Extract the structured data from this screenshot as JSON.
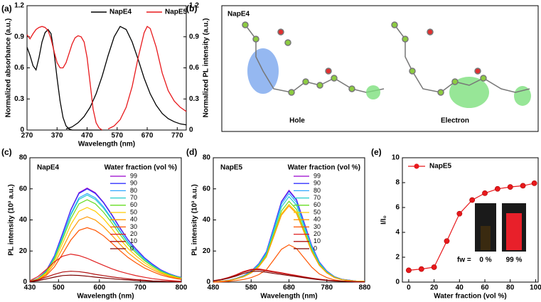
{
  "chart_data": [
    {
      "type": "line",
      "panel_label": "(a)",
      "x_label": "Wavelength (nm)",
      "y_label": "Normalized absorbance (a.u.)",
      "y2_label": "Normalized PL intensity (a.u.)",
      "xlim": [
        270,
        800
      ],
      "xticks": [
        270,
        370,
        470,
        570,
        670,
        770
      ],
      "ylim": [
        0,
        1.2
      ],
      "yticks": [
        0,
        0.3,
        0.6,
        0.9,
        1.2
      ],
      "y2lim": [
        0,
        1.2
      ],
      "y2ticks": [
        0,
        0.3,
        0.6,
        0.9,
        1.2
      ],
      "legend": "top",
      "series": [
        {
          "name": "NapE4",
          "color": "#000000",
          "curves": [
            {
              "x": [
                270,
                280,
                290,
                300,
                310,
                320,
                330,
                340,
                350,
                360,
                370,
                380,
                390,
                400,
                410,
                420,
                440,
                480,
                520
              ],
              "values": [
                0.8,
                0.72,
                0.62,
                0.58,
                0.7,
                0.85,
                0.94,
                0.97,
                0.93,
                0.75,
                0.5,
                0.28,
                0.12,
                0.04,
                0.01,
                0,
                0,
                0,
                0
              ]
            },
            {
              "x": [
                400,
                420,
                440,
                460,
                480,
                500,
                520,
                540,
                560,
                580,
                600,
                620,
                640,
                660,
                680,
                700,
                720,
                740,
                760,
                780,
                800
              ],
              "values": [
                0.01,
                0.03,
                0.07,
                0.13,
                0.22,
                0.35,
                0.52,
                0.72,
                0.9,
                1.0,
                0.97,
                0.85,
                0.68,
                0.5,
                0.35,
                0.24,
                0.16,
                0.11,
                0.08,
                0.06,
                0.05
              ],
              "axis": "y2"
            }
          ]
        },
        {
          "name": "NapE5",
          "color": "#e8191c",
          "curves": [
            {
              "x": [
                270,
                280,
                290,
                300,
                310,
                320,
                330,
                340,
                350,
                360,
                370,
                380,
                390,
                400,
                410,
                420,
                430,
                440,
                450,
                460,
                470,
                480,
                490,
                500,
                510,
                520
              ],
              "values": [
                0.92,
                0.88,
                0.93,
                0.97,
                0.99,
                1.0,
                0.99,
                0.96,
                0.88,
                0.76,
                0.65,
                0.6,
                0.6,
                0.65,
                0.74,
                0.83,
                0.89,
                0.91,
                0.9,
                0.85,
                0.7,
                0.45,
                0.2,
                0.07,
                0.02,
                0
              ]
            },
            {
              "x": [
                540,
                560,
                580,
                600,
                620,
                640,
                660,
                670,
                680,
                700,
                720,
                740,
                760,
                780,
                800
              ],
              "values": [
                0.01,
                0.04,
                0.1,
                0.22,
                0.42,
                0.7,
                0.94,
                1.0,
                0.98,
                0.8,
                0.55,
                0.38,
                0.28,
                0.22,
                0.18
              ],
              "axis": "y2"
            }
          ]
        }
      ]
    },
    {
      "type": "line",
      "panel_label": "(c)",
      "annotation": "NapE4",
      "legend_title": "Water fraction (vol %)",
      "legend": "upper right",
      "x_label": "Wavelength (nm)",
      "y_label": "PL intensity (10³ a.u.)",
      "xlim": [
        430,
        800
      ],
      "xticks": [
        430,
        500,
        600,
        700,
        800
      ],
      "ylim": [
        0,
        80
      ],
      "yticks": [
        0,
        20,
        40,
        60,
        80
      ],
      "x": [
        430,
        450,
        470,
        490,
        510,
        530,
        550,
        570,
        590,
        610,
        630,
        650,
        670,
        690,
        710,
        730,
        750,
        770,
        790,
        800
      ],
      "series": [
        {
          "name": "99",
          "color": "#9900cc",
          "values": [
            0.6,
            2.4,
            7.3,
            16.9,
            31.5,
            46.6,
            57.5,
            60.5,
            57.5,
            51.4,
            43.6,
            35.1,
            27.2,
            21.2,
            15.7,
            11.5,
            7.9,
            5.4,
            3.6,
            3.0
          ]
        },
        {
          "name": "90",
          "color": "#3333ff",
          "values": [
            0.6,
            2.4,
            7.2,
            16.8,
            31.2,
            46.2,
            57,
            60,
            57,
            51,
            43.2,
            34.8,
            27,
            21,
            15.6,
            11.4,
            7.8,
            5.4,
            3.6,
            3
          ]
        },
        {
          "name": "80",
          "color": "#2fa8ff",
          "values": [
            0.6,
            2.3,
            6.8,
            16,
            29.6,
            43.9,
            54.2,
            57,
            54.2,
            48.5,
            41,
            33.1,
            25.7,
            20,
            14.8,
            10.8,
            7.4,
            5.1,
            3.4,
            2.9
          ]
        },
        {
          "name": "70",
          "color": "#22cccc",
          "values": [
            0.6,
            2.2,
            6.7,
            15.7,
            29.1,
            43.1,
            53.2,
            56,
            53.2,
            47.6,
            40.3,
            32.5,
            25.2,
            19.6,
            14.6,
            10.6,
            7.3,
            5,
            3.4,
            2.8
          ]
        },
        {
          "name": "60",
          "color": "#66dd22",
          "values": [
            0.5,
            2.1,
            6.4,
            14.8,
            27.6,
            40.8,
            50.4,
            53,
            50.4,
            45,
            38.2,
            30.7,
            23.9,
            18.6,
            13.8,
            10.1,
            6.9,
            4.8,
            3.2,
            2.7
          ]
        },
        {
          "name": "50",
          "color": "#ffcc00",
          "values": [
            0.5,
            1.9,
            5.8,
            13.4,
            25,
            37,
            45.6,
            48,
            45.6,
            40.8,
            34.6,
            27.8,
            21.6,
            16.8,
            12.5,
            9.1,
            6.2,
            4.3,
            2.9,
            2.4
          ]
        },
        {
          "name": "40",
          "color": "#ff9900",
          "values": [
            0.4,
            1.7,
            5,
            11.8,
            21.8,
            32.3,
            39.9,
            42,
            39.9,
            35.7,
            30.2,
            24.4,
            18.9,
            14.7,
            10.9,
            8,
            5.5,
            3.8,
            2.5,
            2.1
          ]
        },
        {
          "name": "30",
          "color": "#ff5500",
          "values": [
            0.4,
            1.4,
            4.2,
            9.8,
            18.2,
            27,
            33.3,
            35,
            33.3,
            29.8,
            25.2,
            20.3,
            15.8,
            12.3,
            9.1,
            6.7,
            4.6,
            3.2,
            2.1,
            1.8
          ]
        },
        {
          "name": "20",
          "color": "#e02020",
          "values": [
            0.9,
            3.6,
            8.1,
            13,
            16.7,
            18,
            17.1,
            15.3,
            13,
            10.8,
            8.6,
            6.8,
            5.4,
            4.1,
            3.1,
            2.2,
            1.6,
            1.1,
            0.7,
            0.5
          ]
        },
        {
          "name": "10",
          "color": "#b01010",
          "values": [
            0.4,
            1.4,
            3.2,
            5,
            6.5,
            7,
            6.7,
            6,
            5,
            4.2,
            3.4,
            2.7,
            2.1,
            1.6,
            1.2,
            0.8,
            0.6,
            0.4,
            0.3,
            0.2
          ]
        },
        {
          "name": "0",
          "color": "#7a0000",
          "values": [
            0.2,
            0.9,
            2,
            3.2,
            4.2,
            4.5,
            4.3,
            3.8,
            3.2,
            2.7,
            2.2,
            1.7,
            1.4,
            1,
            0.8,
            0.5,
            0.4,
            0.3,
            0.2,
            0.1
          ]
        }
      ]
    },
    {
      "type": "line",
      "panel_label": "(d)",
      "annotation": "NapE5",
      "legend_title": "Water fraction (vol %)",
      "legend": "upper right",
      "x_label": "Wavelength (nm)",
      "y_label": "PL intensity (10³ a.u.)",
      "xlim": [
        480,
        880
      ],
      "xticks": [
        480,
        580,
        680,
        780,
        880
      ],
      "ylim": [
        0,
        80
      ],
      "yticks": [
        0,
        20,
        40,
        60,
        80
      ],
      "x": [
        480,
        500,
        520,
        540,
        560,
        580,
        600,
        620,
        640,
        660,
        680,
        700,
        720,
        740,
        760,
        780,
        800,
        820,
        840,
        860,
        880
      ],
      "series": [
        {
          "name": "99",
          "color": "#9900cc",
          "values": [
            0,
            0.6,
            1.2,
            2.4,
            4.1,
            7.1,
            11.8,
            19.5,
            35.4,
            51.9,
            59,
            53.1,
            38.4,
            23.6,
            13,
            7.1,
            3.5,
            1.8,
            1.2,
            0.6,
            0.6
          ]
        },
        {
          "name": "90",
          "color": "#3333ff",
          "values": [
            0,
            0.6,
            1.2,
            2.3,
            4.1,
            7,
            11.7,
            19.3,
            35.1,
            51.5,
            58.5,
            52.7,
            38,
            23.4,
            12.9,
            7,
            3.5,
            1.8,
            1.2,
            0.6,
            0.6
          ]
        },
        {
          "name": "80",
          "color": "#2fa8ff",
          "values": [
            0,
            0.6,
            1.1,
            2.3,
            4,
            6.8,
            11.4,
            18.8,
            34.2,
            50.2,
            57,
            51.3,
            37,
            22.8,
            12.5,
            6.8,
            3.4,
            1.7,
            1.1,
            0.6,
            0.6
          ]
        },
        {
          "name": "70",
          "color": "#22cccc",
          "values": [
            0,
            0.6,
            1.1,
            2.2,
            3.9,
            6.6,
            11,
            18.2,
            33,
            48.4,
            55,
            49.5,
            35.8,
            22,
            12.1,
            6.6,
            3.3,
            1.7,
            1.1,
            0.6,
            0.6
          ]
        },
        {
          "name": "60",
          "color": "#66dd22",
          "values": [
            0,
            0.5,
            1,
            2.1,
            3.6,
            6.2,
            10.4,
            17.2,
            31.2,
            45.8,
            52,
            46.8,
            33.8,
            20.8,
            11.4,
            6.2,
            3.1,
            1.6,
            1,
            0.5,
            0.5
          ]
        },
        {
          "name": "50",
          "color": "#ffcc00",
          "values": [
            0,
            0.5,
            1,
            2,
            3.5,
            6,
            10,
            16.5,
            30,
            44,
            50,
            45,
            32.5,
            20,
            11,
            6,
            3,
            1.5,
            1,
            0.5,
            0.5
          ]
        },
        {
          "name": "40",
          "color": "#ff9900",
          "values": [
            0,
            0.5,
            1,
            2,
            3.4,
            5.9,
            9.8,
            16.2,
            29.4,
            43.1,
            49,
            44.1,
            31.9,
            19.6,
            10.8,
            5.9,
            2.9,
            1.5,
            1,
            0.5,
            0.5
          ]
        },
        {
          "name": "30",
          "color": "#ff5500",
          "values": [
            0,
            0.2,
            0.5,
            1,
            1.7,
            2.9,
            4.8,
            7.9,
            14.4,
            21.1,
            24,
            21.6,
            15.6,
            9.6,
            5.3,
            2.9,
            1.4,
            0.7,
            0.5,
            0.2,
            0.2
          ]
        },
        {
          "name": "20",
          "color": "#e02020",
          "values": [
            0.9,
            1.7,
            3,
            4.7,
            6.8,
            8.2,
            8.5,
            7.7,
            6.8,
            6,
            5.1,
            4.3,
            3.4,
            2.6,
            1.9,
            1.3,
            0.9,
            0.6,
            0.3,
            0.2,
            0.1
          ]
        },
        {
          "name": "10",
          "color": "#b01010",
          "values": [
            0.8,
            1.6,
            2.8,
            4.4,
            6.4,
            7.8,
            8,
            7.2,
            6.4,
            5.6,
            4.8,
            4,
            3.2,
            2.4,
            1.8,
            1.2,
            0.8,
            0.6,
            0.3,
            0.2,
            0.1
          ]
        },
        {
          "name": "0",
          "color": "#7a0000",
          "values": [
            0.7,
            1.4,
            2.5,
            3.9,
            5.6,
            6.8,
            7,
            6.3,
            5.6,
            4.9,
            4.2,
            3.5,
            2.8,
            2.1,
            1.5,
            1.1,
            0.7,
            0.5,
            0.3,
            0.1,
            0.1
          ]
        }
      ]
    },
    {
      "type": "line",
      "panel_label": "(e)",
      "marker": true,
      "legend": "upper left",
      "x_label": "Water fraction (vol %)",
      "y_label": "I/I₀",
      "xlim": [
        -5,
        102
      ],
      "xticks": [
        0,
        20,
        40,
        60,
        80,
        100
      ],
      "ylim": [
        0,
        10
      ],
      "yticks": [
        0,
        2,
        4,
        6,
        8,
        10
      ],
      "x": [
        0,
        10,
        20,
        30,
        40,
        50,
        60,
        70,
        80,
        90,
        99
      ],
      "series": [
        {
          "name": "NapE5",
          "color": "#e8191c",
          "values": [
            0.95,
            1.05,
            1.2,
            3.3,
            5.5,
            6.6,
            7.15,
            7.5,
            7.65,
            7.75,
            7.95
          ]
        }
      ],
      "inset_labels": [
        "fw =",
        "0 %",
        "99 %"
      ]
    }
  ],
  "diagram": {
    "panel_label": "(b)",
    "title": "NapE4",
    "labels": [
      "Hole",
      "Electron"
    ]
  }
}
